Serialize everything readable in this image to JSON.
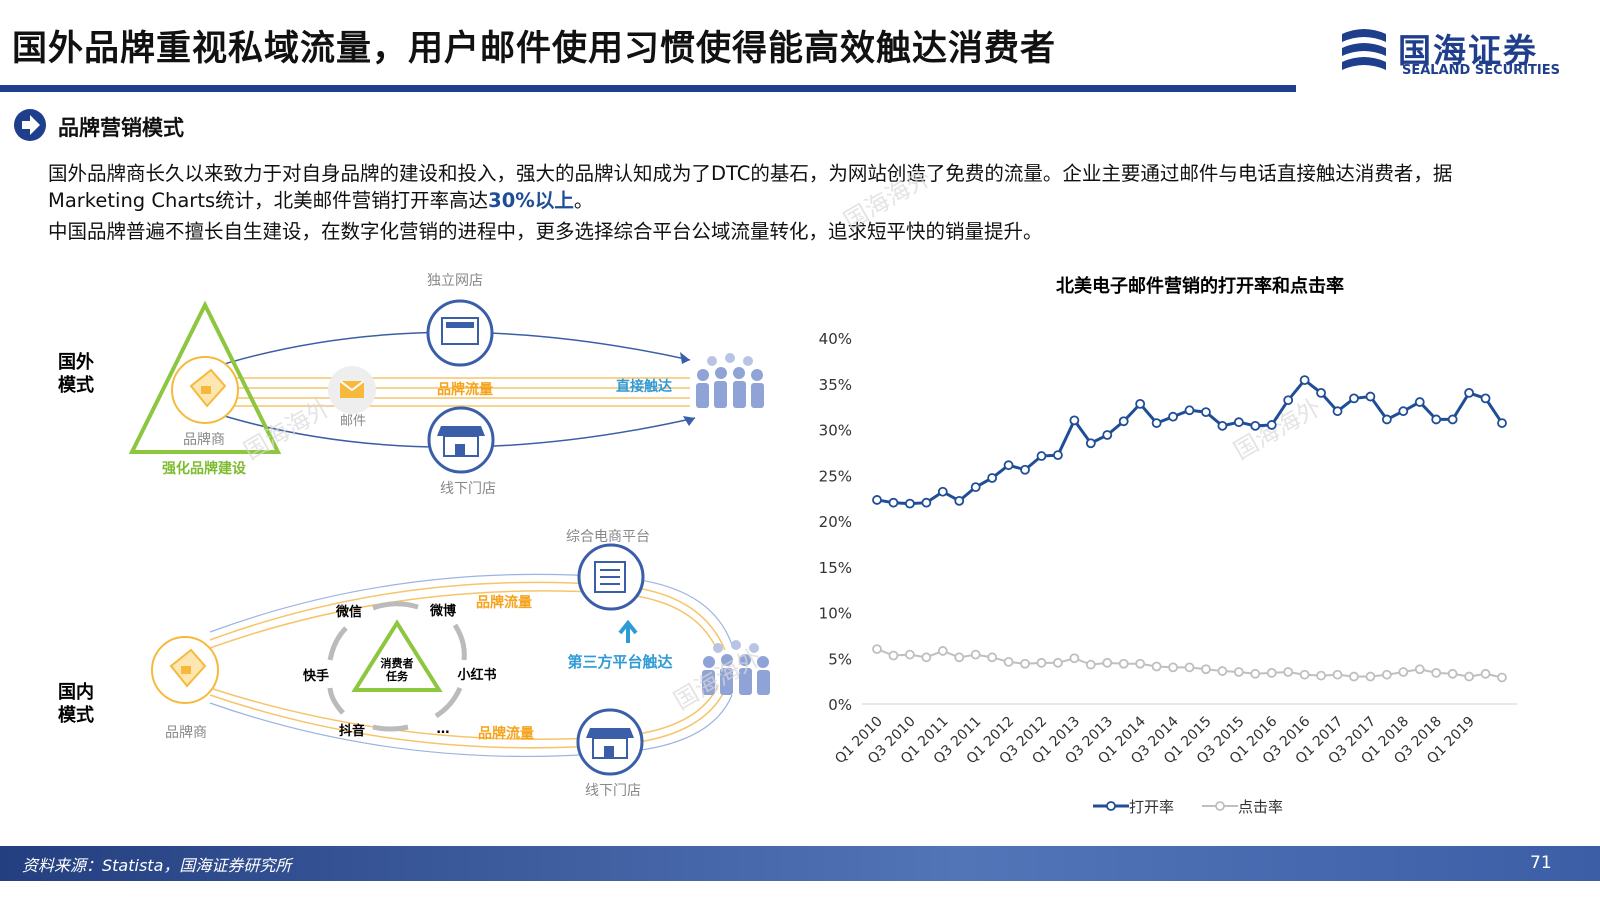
{
  "header": {
    "title": "国外品牌重视私域流量，用户邮件使用习惯使得能高效触达消费者",
    "logo_cn": "国海证券",
    "logo_en": "SEALAND SECURITIES"
  },
  "section": {
    "heading": "品牌营销模式",
    "paragraph1": [
      "国外品牌商长久以来致力于对自身品牌的建设和投入，强大的品牌认知成为了DTC的基石，为网站创造了免费的流量。企业主要通过邮件与电话直接触达消费者，据Marketing Charts统计，北美邮件营销打开率高达",
      "30%以上",
      "。"
    ],
    "paragraph2": "中国品牌普遍不擅长自生建设，在数字化营销的进程中，更多选择综合平台公域流量转化，追求短平快的销量提升。"
  },
  "watermark": "国海海外",
  "diagram": {
    "foreign": {
      "label": [
        "国外",
        "模式"
      ],
      "store_online": "独立网店",
      "mail": "邮件",
      "traffic": "品牌流量",
      "reach": "直接触达",
      "brand": "品牌商",
      "build": "强化品牌建设",
      "store_offline": "线下门店"
    },
    "domestic": {
      "label": [
        "国内",
        "模式"
      ],
      "platform": "综合电商平台",
      "traffic_top": "品牌流量",
      "reach": "第三方平台触达",
      "channels": [
        "微信",
        "微博",
        "小红书",
        "快手",
        "抖音",
        "…"
      ],
      "task": [
        "消费者",
        "任务"
      ],
      "brand": "品牌商",
      "traffic_bottom": "品牌流量",
      "store_offline": "线下门店"
    }
  },
  "chart_data": {
    "type": "line",
    "title": "北美电子邮件营销的打开率和点击率",
    "categories": [
      "Q1 2010",
      null,
      "Q3 2010",
      null,
      "Q1 2011",
      null,
      "Q3 2011",
      null,
      "Q1 2012",
      null,
      "Q3 2012",
      null,
      "Q1 2013",
      null,
      "Q3 2013",
      null,
      "Q1 2014",
      null,
      "Q3 2014",
      null,
      "Q1 2015",
      null,
      "Q3 2015",
      null,
      "Q1 2016",
      null,
      "Q3 2016",
      null,
      "Q1 2017",
      null,
      "Q3 2017",
      null,
      "Q1 2018",
      null,
      "Q3 2018",
      null,
      "Q1 2019",
      null,
      null
    ],
    "series": [
      {
        "name": "打开率",
        "color": "#1f4e96",
        "values": [
          22.3,
          22.0,
          21.9,
          22.0,
          23.2,
          22.2,
          23.7,
          24.7,
          26.1,
          25.6,
          27.1,
          27.2,
          31.0,
          28.5,
          29.4,
          30.9,
          32.8,
          30.7,
          31.4,
          32.1,
          31.9,
          30.4,
          30.8,
          30.4,
          30.5,
          33.2,
          35.4,
          34.0,
          32.0,
          33.4,
          33.6,
          31.1,
          32.0,
          33.0,
          31.1,
          31.1,
          34.0,
          33.4,
          30.7
        ]
      },
      {
        "name": "点击率",
        "color": "#bfbfbf",
        "values": [
          6.0,
          5.3,
          5.4,
          5.1,
          5.8,
          5.1,
          5.4,
          5.1,
          4.6,
          4.4,
          4.5,
          4.5,
          5.0,
          4.3,
          4.5,
          4.4,
          4.4,
          4.1,
          4.0,
          4.0,
          3.8,
          3.6,
          3.5,
          3.3,
          3.4,
          3.5,
          3.2,
          3.1,
          3.2,
          3.0,
          3.0,
          3.2,
          3.5,
          3.8,
          3.4,
          3.3,
          3.0,
          3.3,
          2.9
        ]
      }
    ],
    "ylim": [
      0,
      40
    ],
    "yticks": [
      {
        "value": 0,
        "label": "0%"
      },
      {
        "value": 5,
        "label": "5%"
      },
      {
        "value": 10,
        "label": "10%"
      },
      {
        "value": 15,
        "label": "15%"
      },
      {
        "value": 20,
        "label": "20%"
      },
      {
        "value": 25,
        "label": "25%"
      },
      {
        "value": 30,
        "label": "30%"
      },
      {
        "value": 35,
        "label": "35%"
      },
      {
        "value": 40,
        "label": "40%"
      }
    ],
    "grid": false,
    "legend": "bottom"
  },
  "footer": {
    "source": "资料来源：Statista，国海证券研究所",
    "page": "71"
  }
}
